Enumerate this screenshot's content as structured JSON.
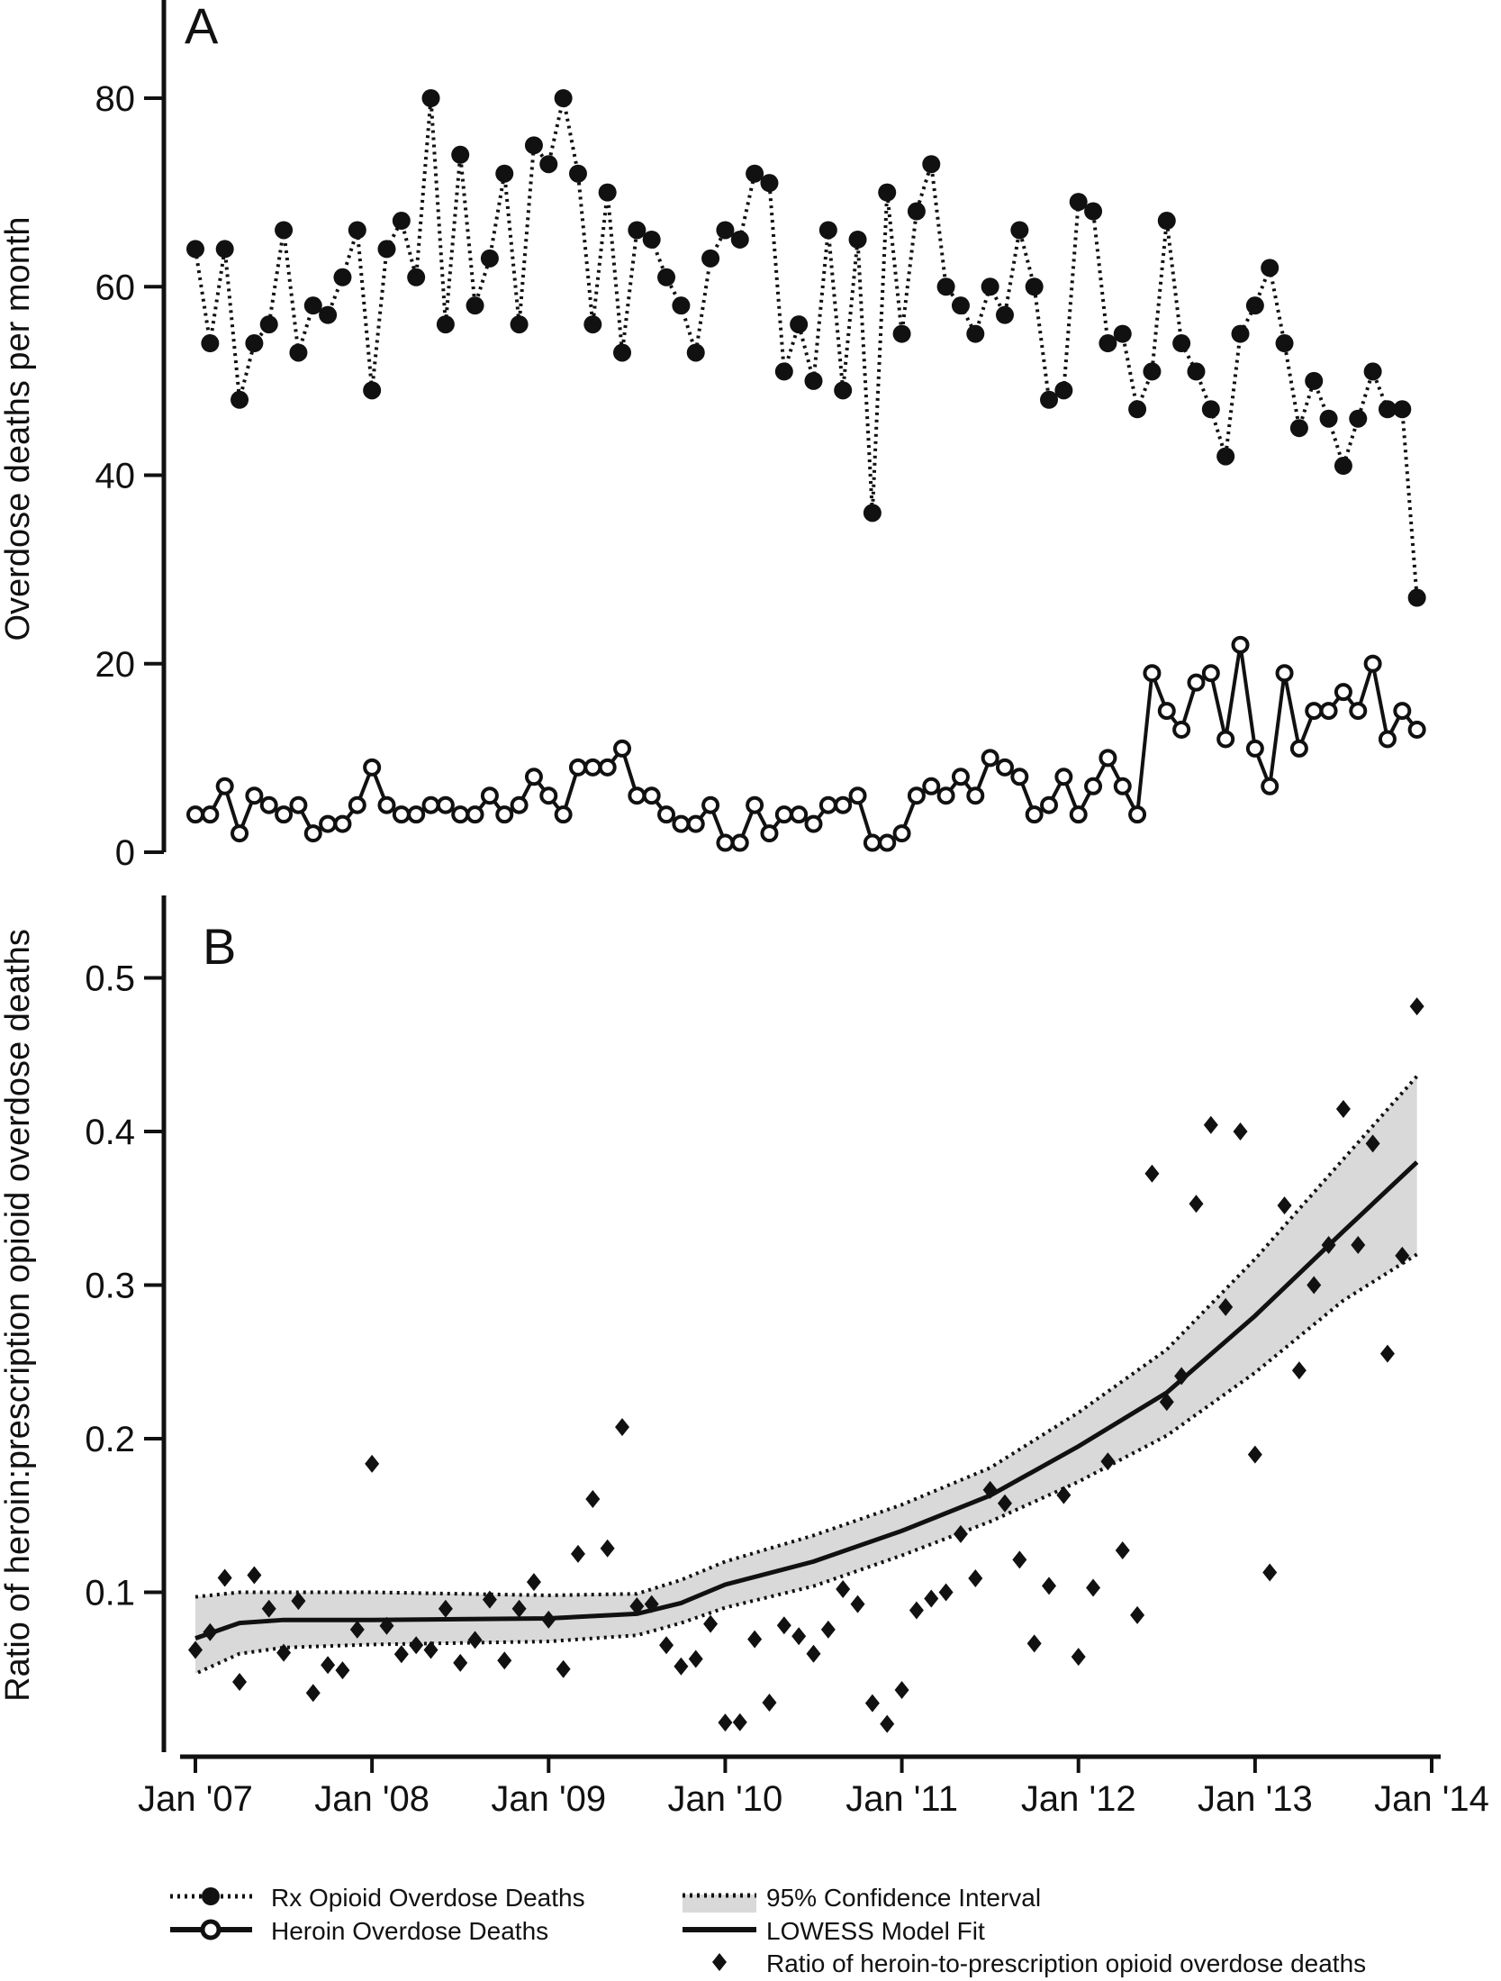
{
  "chart_data": [
    {
      "panel": "A",
      "type": "line",
      "ylabel": "Overdose deaths per month",
      "ylim": [
        0,
        90
      ],
      "yticks": [
        0,
        20,
        40,
        60,
        80
      ],
      "x_start": "Jan 2007",
      "x_unit": "month",
      "series": [
        {
          "name": "Rx Opioid Overdose Deaths",
          "style": "dotted",
          "marker": "filled-circle",
          "values": [
            64,
            54,
            64,
            48,
            54,
            56,
            66,
            53,
            58,
            57,
            61,
            66,
            49,
            64,
            67,
            61,
            80,
            56,
            74,
            58,
            63,
            72,
            56,
            75,
            73,
            80,
            72,
            56,
            70,
            53,
            66,
            65,
            61,
            58,
            53,
            63,
            66,
            65,
            72,
            71,
            51,
            56,
            50,
            66,
            49,
            65,
            36,
            70,
            55,
            68,
            73,
            60,
            58,
            55,
            60,
            57,
            66,
            60,
            48,
            49,
            69,
            68,
            54,
            55,
            47,
            51,
            67,
            54,
            51,
            47,
            42,
            55,
            58,
            62,
            54,
            45,
            50,
            46,
            41,
            46,
            51,
            47,
            47,
            27
          ]
        },
        {
          "name": "Heroin Overdose Deaths",
          "style": "solid",
          "marker": "open-circle",
          "values": [
            4,
            4,
            7,
            2,
            6,
            5,
            4,
            5,
            2,
            3,
            3,
            5,
            9,
            5,
            4,
            4,
            5,
            5,
            4,
            4,
            6,
            4,
            5,
            8,
            6,
            4,
            9,
            9,
            9,
            11,
            6,
            6,
            4,
            3,
            3,
            5,
            1,
            1,
            5,
            2,
            4,
            4,
            3,
            5,
            5,
            6,
            1,
            1,
            2,
            6,
            7,
            6,
            8,
            6,
            10,
            9,
            8,
            4,
            5,
            8,
            4,
            7,
            10,
            7,
            4,
            19,
            15,
            13,
            18,
            19,
            12,
            22,
            11,
            7,
            19,
            11,
            15,
            15,
            17,
            15,
            20,
            12,
            15,
            13
          ]
        }
      ]
    },
    {
      "panel": "B",
      "type": "scatter",
      "ylabel": "Ratio of heroin:prescription opioid overdose deaths",
      "ylim": [
        0,
        0.55
      ],
      "yticks": [
        0.1,
        0.2,
        0.3,
        0.4,
        0.5
      ],
      "ytick_labels": [
        "0.1",
        "0.2",
        "0.3",
        "0.4",
        "0.5"
      ],
      "xtick_labels": [
        "Jan '07",
        "Jan '08",
        "Jan '09",
        "Jan '10",
        "Jan '11",
        "Jan '12",
        "Jan '13",
        "Jan '14"
      ],
      "ratio_note": "ratio = heroin / rx per month (points)",
      "lowess": {
        "months": [
          0,
          3,
          6,
          12,
          24,
          30,
          33,
          36,
          42,
          48,
          54,
          60,
          66,
          72,
          78,
          83
        ],
        "fit": [
          0.07,
          0.08,
          0.082,
          0.082,
          0.083,
          0.086,
          0.093,
          0.105,
          0.12,
          0.14,
          0.163,
          0.195,
          0.23,
          0.28,
          0.335,
          0.38
        ],
        "lower": [
          0.047,
          0.06,
          0.064,
          0.066,
          0.068,
          0.072,
          0.08,
          0.09,
          0.104,
          0.124,
          0.146,
          0.172,
          0.202,
          0.243,
          0.29,
          0.32
        ],
        "upper": [
          0.097,
          0.1,
          0.1,
          0.1,
          0.098,
          0.099,
          0.108,
          0.12,
          0.137,
          0.157,
          0.181,
          0.217,
          0.258,
          0.317,
          0.382,
          0.436
        ]
      }
    }
  ],
  "panel_labels": {
    "a": "A",
    "b": "B"
  },
  "legend": {
    "rx": "Rx Opioid Overdose Deaths",
    "heroin": "Heroin Overdose Deaths",
    "ci": "95% Confidence Interval",
    "lowess": "LOWESS Model Fit",
    "ratio": "Ratio of heroin-to-prescription opioid overdose deaths"
  },
  "colors": {
    "ink": "#111111",
    "ci_fill": "#d9d9d9"
  }
}
